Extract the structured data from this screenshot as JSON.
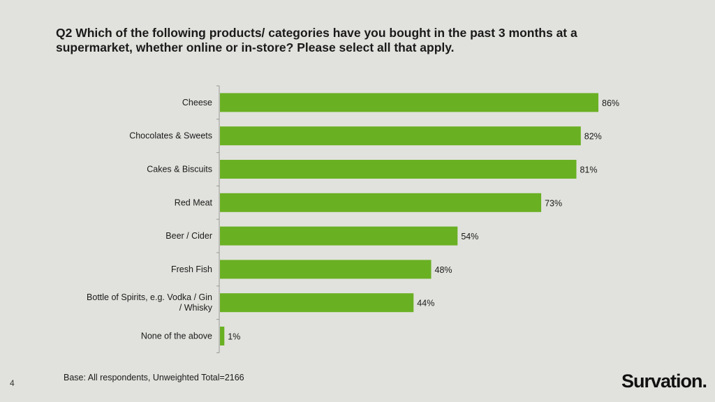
{
  "slide": {
    "title_line1": "Q2 Which of the following products/ categories have you bought in the past 3 months at a",
    "title_line2": "supermarket, whether online or in-store? Please select all that apply.",
    "base_note": "Base: All respondents, Unweighted Total=2166",
    "page_number": "4",
    "logo_text": "Survation."
  },
  "colors": {
    "bar": "#6ab023",
    "background": "#e1e2dd"
  },
  "chart_data": {
    "type": "bar",
    "orientation": "horizontal",
    "categories": [
      "Cheese",
      "Chocolates & Sweets",
      "Cakes & Biscuits",
      "Red Meat",
      "Beer / Cider",
      "Fresh Fish",
      "Bottle of Spirits, e.g. Vodka / Gin / Whisky",
      "None of the above"
    ],
    "values": [
      86,
      82,
      81,
      73,
      54,
      48,
      44,
      1
    ],
    "value_labels": [
      "86%",
      "82%",
      "81%",
      "73%",
      "54%",
      "48%",
      "44%",
      "1%"
    ],
    "xlim": [
      0,
      100
    ],
    "grid": false,
    "legend": "none"
  }
}
